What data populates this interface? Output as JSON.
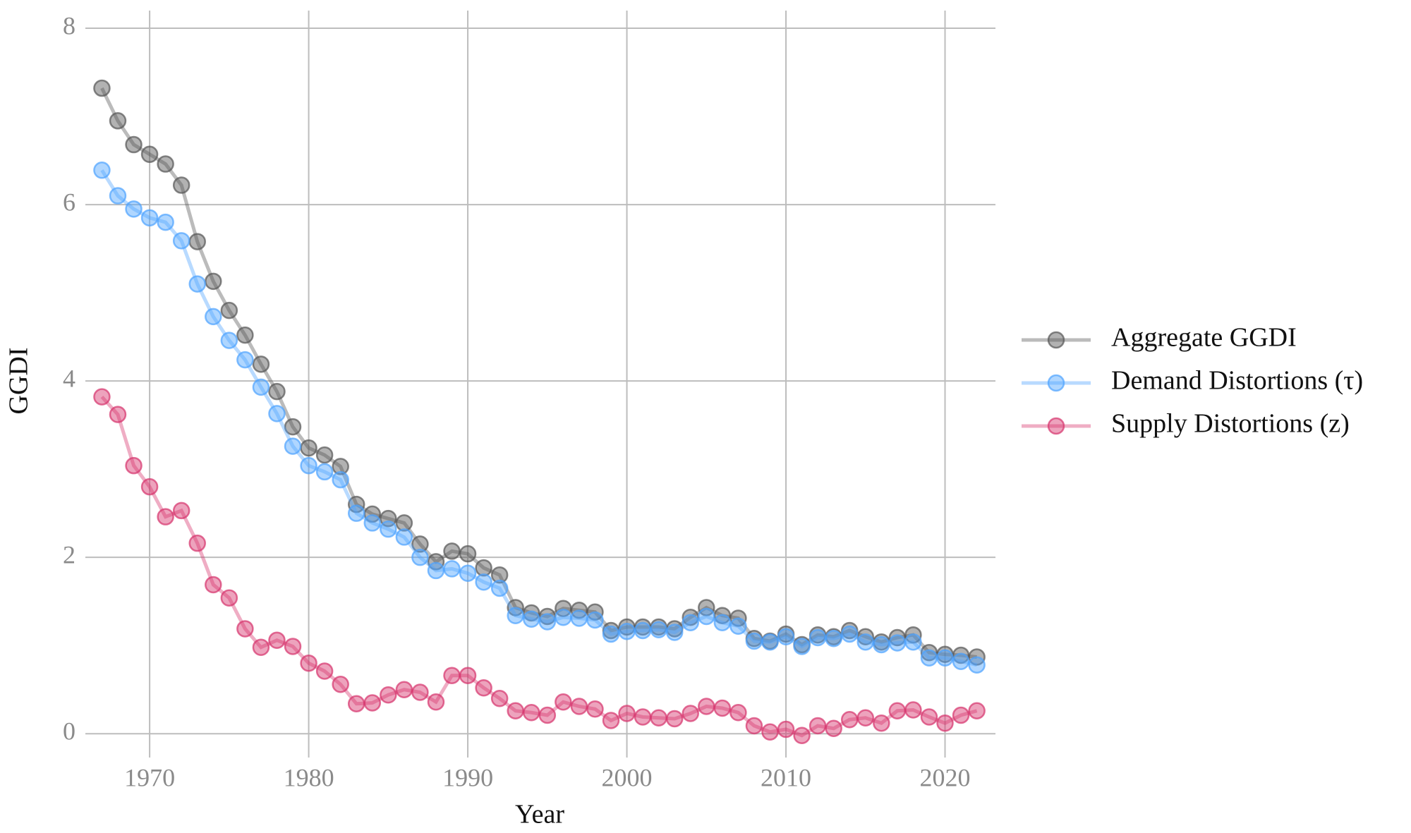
{
  "chart_data": {
    "type": "line",
    "x_label": "Year",
    "y_label": "GGDI",
    "x": [
      1967,
      1968,
      1969,
      1970,
      1971,
      1972,
      1973,
      1974,
      1975,
      1976,
      1977,
      1978,
      1979,
      1980,
      1981,
      1982,
      1983,
      1984,
      1985,
      1986,
      1987,
      1988,
      1989,
      1990,
      1991,
      1992,
      1993,
      1994,
      1995,
      1996,
      1997,
      1998,
      1999,
      2000,
      2001,
      2002,
      2003,
      2004,
      2005,
      2006,
      2007,
      2008,
      2009,
      2010,
      2011,
      2012,
      2013,
      2014,
      2015,
      2016,
      2017,
      2018,
      2019,
      2020,
      2021,
      2022
    ],
    "series": [
      {
        "name": "Aggregate GGDI",
        "color": "#555555",
        "values": [
          7.32,
          6.95,
          6.68,
          6.57,
          6.46,
          6.22,
          5.58,
          5.13,
          4.8,
          4.52,
          4.19,
          3.88,
          3.48,
          3.24,
          3.16,
          3.03,
          2.6,
          2.49,
          2.44,
          2.39,
          2.15,
          1.95,
          2.07,
          2.04,
          1.88,
          1.8,
          1.43,
          1.37,
          1.33,
          1.42,
          1.4,
          1.38,
          1.17,
          1.21,
          1.21,
          1.21,
          1.19,
          1.32,
          1.43,
          1.34,
          1.31,
          1.08,
          1.05,
          1.13,
          1.01,
          1.12,
          1.1,
          1.17,
          1.1,
          1.04,
          1.09,
          1.12,
          0.92,
          0.9,
          0.89,
          0.87
        ]
      },
      {
        "name": "Demand Distortions (τ)",
        "color": "#4da3ff",
        "values": [
          6.39,
          6.1,
          5.95,
          5.85,
          5.8,
          5.59,
          5.1,
          4.73,
          4.46,
          4.24,
          3.93,
          3.63,
          3.26,
          3.04,
          2.97,
          2.88,
          2.5,
          2.39,
          2.32,
          2.23,
          2.0,
          1.85,
          1.87,
          1.82,
          1.72,
          1.65,
          1.34,
          1.3,
          1.27,
          1.32,
          1.31,
          1.29,
          1.13,
          1.16,
          1.17,
          1.18,
          1.15,
          1.26,
          1.33,
          1.26,
          1.22,
          1.05,
          1.04,
          1.1,
          0.99,
          1.09,
          1.08,
          1.13,
          1.04,
          1.01,
          1.03,
          1.04,
          0.86,
          0.86,
          0.82,
          0.78
        ]
      },
      {
        "name": "Supply Distortions (z)",
        "color": "#d6336c",
        "values": [
          3.82,
          3.62,
          3.04,
          2.8,
          2.46,
          2.53,
          2.16,
          1.69,
          1.54,
          1.19,
          0.98,
          1.06,
          0.99,
          0.8,
          0.71,
          0.56,
          0.34,
          0.35,
          0.44,
          0.5,
          0.47,
          0.36,
          0.66,
          0.66,
          0.52,
          0.4,
          0.26,
          0.24,
          0.21,
          0.36,
          0.31,
          0.28,
          0.15,
          0.23,
          0.19,
          0.18,
          0.17,
          0.23,
          0.31,
          0.29,
          0.24,
          0.09,
          0.02,
          0.05,
          -0.02,
          0.09,
          0.06,
          0.16,
          0.18,
          0.12,
          0.26,
          0.27,
          0.19,
          0.12,
          0.21,
          0.26
        ]
      }
    ],
    "xlim": [
      1965.96,
      2023.17
    ],
    "xticks": [
      1970,
      1980,
      1990,
      2000,
      2010,
      2020
    ],
    "ylim": [
      -0.27,
      8.2
    ],
    "yticks": [
      0,
      2,
      4,
      6,
      8
    ],
    "grid": true,
    "legend": "right"
  }
}
